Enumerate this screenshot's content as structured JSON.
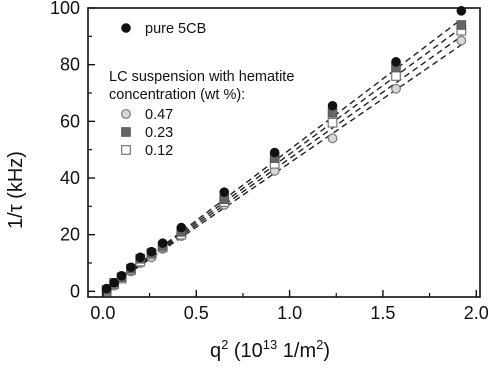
{
  "chart_data": {
    "type": "scatter",
    "title": "",
    "xlabel": "q",
    "xlabel_sup": "2",
    "xlabel_unit": "(10",
    "xlabel_unit_sup": "13",
    "xlabel_unit_tail": " 1/m",
    "xlabel_unit_tail_sup": "2",
    "xlabel_close": ")",
    "ylabel": "1/τ (kHz)",
    "xlim": [
      -0.08,
      2.02
    ],
    "ylim": [
      -2,
      100
    ],
    "xticks": [
      0.0,
      0.5,
      1.0,
      1.5,
      2.0
    ],
    "xtick_labels": [
      "0.0",
      "0.5",
      "1.0",
      "1.5",
      "2.0"
    ],
    "yticks": [
      0,
      20,
      40,
      60,
      80,
      100
    ],
    "ytick_labels": [
      "0",
      "20",
      "40",
      "60",
      "80",
      "100"
    ],
    "grid": false,
    "legend_position": "top-left",
    "legend_heading_line1": "LC suspension with hematite",
    "legend_heading_line2": "concentration (wt %):",
    "series": [
      {
        "name": "pure 5CB",
        "marker": "filled-circle",
        "color": "#111111",
        "x": [
          0.02,
          0.06,
          0.1,
          0.15,
          0.2,
          0.26,
          0.32,
          0.42,
          0.65,
          0.92,
          1.23,
          1.57,
          1.92
        ],
        "y": [
          1,
          3,
          5.5,
          8.5,
          12,
          14,
          17,
          22.5,
          35,
          49,
          65.5,
          81,
          99
        ]
      },
      {
        "name": "0.47",
        "marker": "open-circle",
        "color": "#888888",
        "x": [
          0.02,
          0.06,
          0.1,
          0.15,
          0.2,
          0.26,
          0.32,
          0.42,
          0.65,
          0.92,
          1.23,
          1.57,
          1.92
        ],
        "y": [
          0,
          2,
          4.5,
          7,
          10,
          12,
          15,
          19.5,
          30.5,
          42.5,
          54,
          71.5,
          88.5
        ]
      },
      {
        "name": "0.23",
        "marker": "filled-square",
        "color": "#666666",
        "x": [
          0.02,
          0.06,
          0.1,
          0.15,
          0.2,
          0.26,
          0.32,
          0.42,
          0.65,
          0.92,
          1.23,
          1.57,
          1.92
        ],
        "y": [
          0.5,
          3,
          5,
          8,
          11.5,
          13.5,
          16,
          21,
          32.5,
          47,
          63,
          79,
          94
        ]
      },
      {
        "name": "0.12",
        "marker": "open-square",
        "color": "#777777",
        "x": [
          0.02,
          0.06,
          0.1,
          0.15,
          0.2,
          0.26,
          0.32,
          0.42,
          0.65,
          0.92,
          1.23,
          1.57,
          1.92
        ],
        "y": [
          0,
          2.5,
          4.5,
          7.5,
          10.5,
          13,
          15.5,
          20,
          31.5,
          45,
          59.5,
          76,
          92
        ]
      }
    ],
    "fit_lines": [
      {
        "x": [
          0.0,
          1.92
        ],
        "y": [
          0,
          96
        ]
      },
      {
        "x": [
          0.0,
          1.92
        ],
        "y": [
          0,
          93
        ]
      },
      {
        "x": [
          0.0,
          1.92
        ],
        "y": [
          0,
          90
        ]
      },
      {
        "x": [
          0.0,
          1.92
        ],
        "y": [
          0,
          87
        ]
      }
    ]
  }
}
